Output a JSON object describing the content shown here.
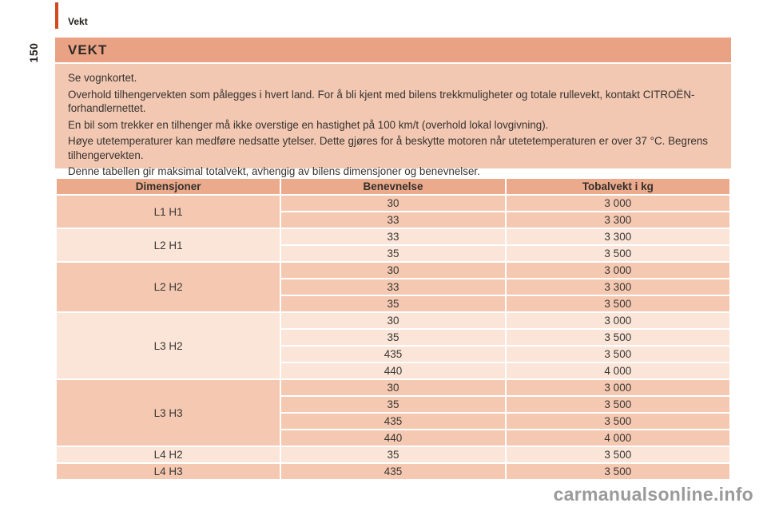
{
  "header": {
    "topic": "Vekt",
    "page_number": "150"
  },
  "section": {
    "title": "VEKT",
    "paragraphs": [
      "Se vognkortet.",
      "Overhold tilhengervekten som pålegges i hvert land. For å bli kjent med bilens trekkmuligheter og totale rullevekt, kontakt CITROËN-forhandlernettet.",
      "En bil som trekker en tilhenger må ikke overstige en hastighet på 100 km/t (overhold lokal lovgivning).",
      "Høye utetemperaturer kan medføre nedsatte ytelser. Dette gjøres for å beskytte motoren når utetetemperaturen er over 37 °C. Begrens tilhengervekten.",
      "Denne tabellen gir maksimal totalvekt, avhengig av bilens dimensjoner og benevnelser."
    ]
  },
  "table": {
    "headers": [
      "Dimensjoner",
      "Benevnelse",
      "Tobalvekt i kg"
    ],
    "groups": [
      {
        "dimension": "L1 H1",
        "shade": "medium",
        "rows": [
          [
            "30",
            "3 000"
          ],
          [
            "33",
            "3 300"
          ]
        ]
      },
      {
        "dimension": "L2 H1",
        "shade": "light",
        "rows": [
          [
            "33",
            "3 300"
          ],
          [
            "35",
            "3 500"
          ]
        ]
      },
      {
        "dimension": "L2 H2",
        "shade": "medium",
        "rows": [
          [
            "30",
            "3 000"
          ],
          [
            "33",
            "3 300"
          ],
          [
            "35",
            "3 500"
          ]
        ]
      },
      {
        "dimension": "L3 H2",
        "shade": "light",
        "rows": [
          [
            "30",
            "3 000"
          ],
          [
            "35",
            "3 500"
          ],
          [
            "435",
            "3 500"
          ],
          [
            "440",
            "4 000"
          ]
        ]
      },
      {
        "dimension": "L3 H3",
        "shade": "medium",
        "rows": [
          [
            "30",
            "3 000"
          ],
          [
            "35",
            "3 500"
          ],
          [
            "435",
            "3 500"
          ],
          [
            "440",
            "4 000"
          ]
        ]
      },
      {
        "dimension": "L4 H2",
        "shade": "light",
        "rows": [
          [
            "35",
            "3 500"
          ]
        ]
      },
      {
        "dimension": "L4 H3",
        "shade": "medium",
        "rows": [
          [
            "435",
            "3 500"
          ]
        ]
      }
    ]
  },
  "watermark": "carmanualsonline.info",
  "colors": {
    "accent_orange": "#D24A1C",
    "title_bar_bg": "#E9A284",
    "intro_bg": "#F2C8B2",
    "table_header_bg": "#ECAA8C",
    "row_medium": "#F4C8B1",
    "row_light": "#FAE5D8",
    "text_dark": "#37322F",
    "watermark_gray": "#9A9A9A"
  }
}
